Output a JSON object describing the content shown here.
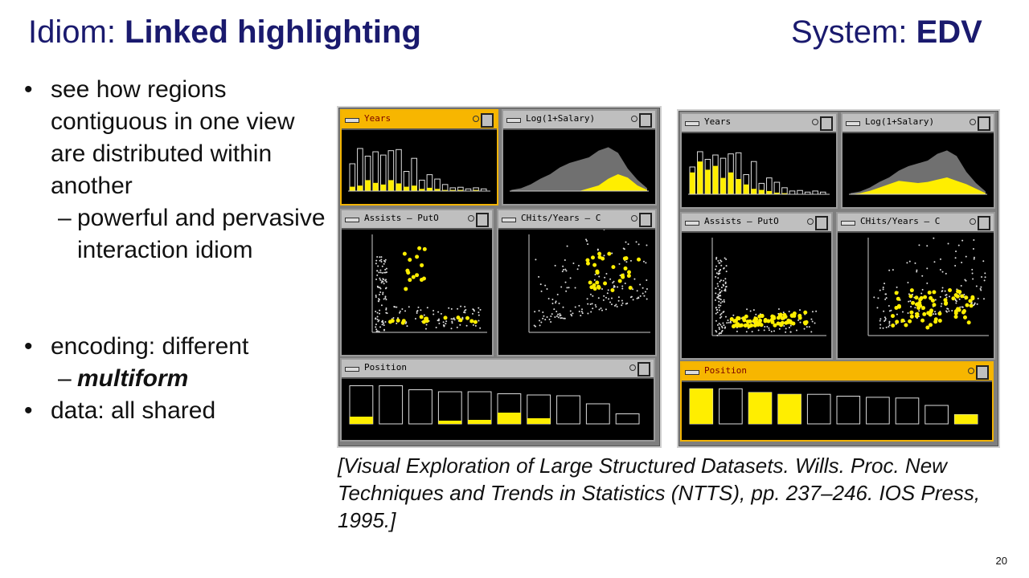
{
  "title_left": {
    "prefix": "Idiom: ",
    "emph": "Linked highlighting"
  },
  "title_right": {
    "prefix": "System: ",
    "emph": "EDV"
  },
  "bullets": {
    "b1": "see how regions contiguous in one view are distributed within another",
    "b1_sub": "powerful and pervasive interaction idiom",
    "b2": "encoding: different",
    "b2_sub": "multiform",
    "b3": "data: all shared",
    "dash": "–"
  },
  "citation": "[Visual Exploration of Large Structured Datasets. Wills. Proc. New Techniques and Trends in Statistics (NTTS), pp. 237–246. IOS Press, 1995.]",
  "page_number": "20",
  "panels": {
    "years": "Years",
    "salary": "Log(1+Salary)",
    "assists": "Assists   — PutO",
    "chits": "CHits/Years   — C",
    "position": "Position"
  },
  "colors": {
    "title_blue": "#1a1a6e",
    "highlight": "#ffee00",
    "selected_frame": "#f7b600"
  }
}
